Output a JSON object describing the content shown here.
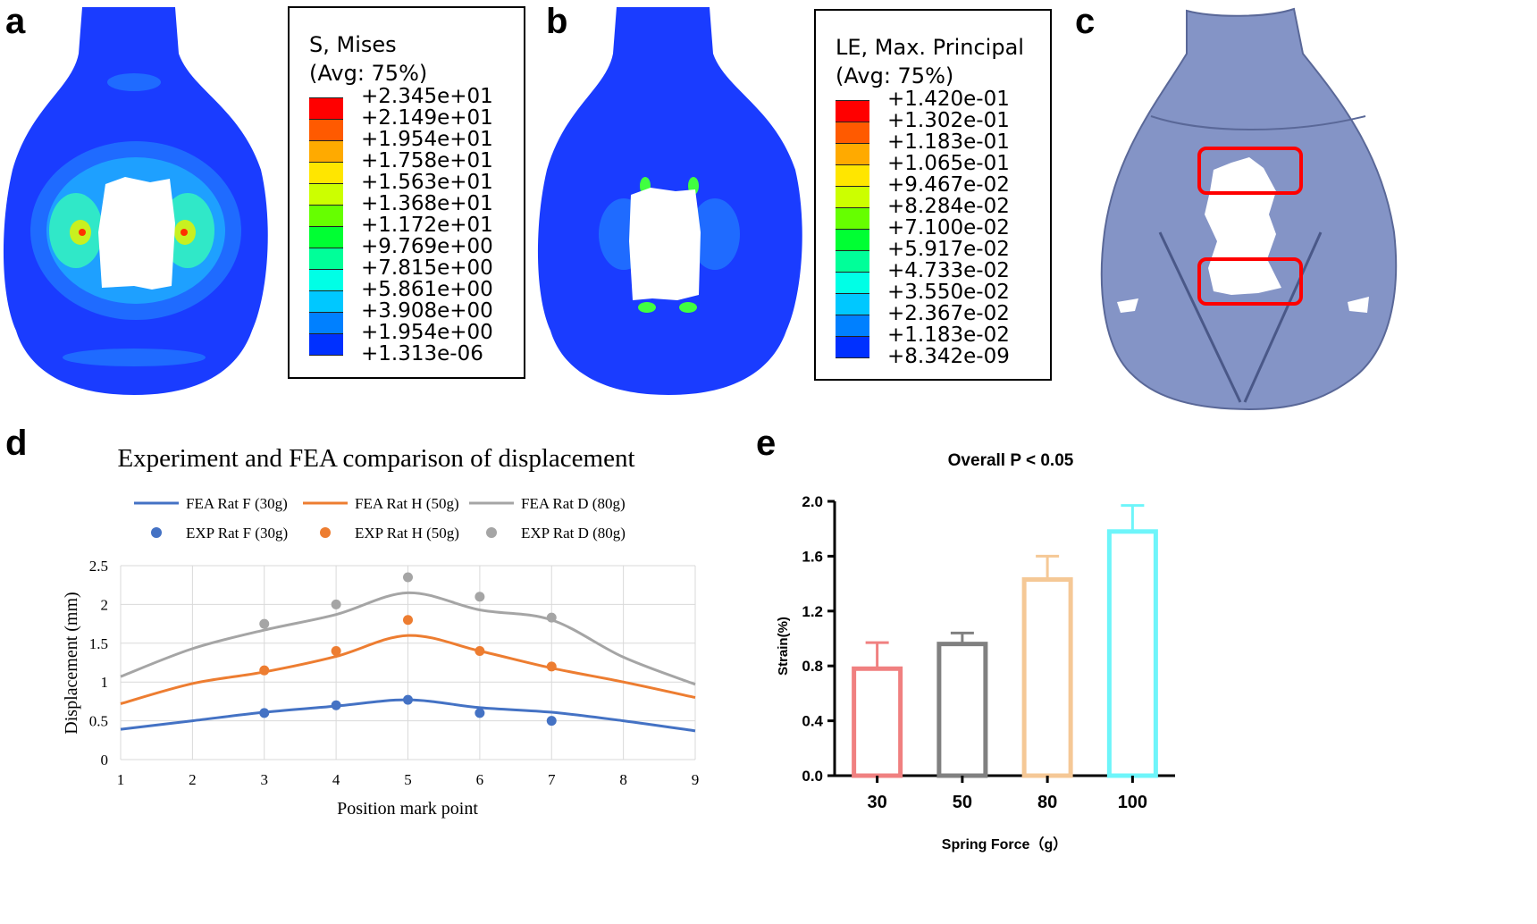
{
  "panels": {
    "a": {
      "letter": "a",
      "legend_title_line1": "S, Mises",
      "legend_title_line2": "(Avg: 75%)",
      "legend_values": [
        "+2.345e+01",
        "+2.149e+01",
        "+1.954e+01",
        "+1.758e+01",
        "+1.563e+01",
        "+1.368e+01",
        "+1.172e+01",
        "+9.769e+00",
        "+7.815e+00",
        "+5.861e+00",
        "+3.908e+00",
        "+1.954e+00",
        "+1.313e-06"
      ]
    },
    "b": {
      "letter": "b",
      "legend_title_line1": "LE, Max. Principal",
      "legend_title_line2": "(Avg: 75%)",
      "legend_values": [
        "+1.420e-01",
        "+1.302e-01",
        "+1.183e-01",
        "+1.065e-01",
        "+9.467e-02",
        "+8.284e-02",
        "+7.100e-02",
        "+5.917e-02",
        "+4.733e-02",
        "+3.550e-02",
        "+2.367e-02",
        "+1.183e-02",
        "+8.342e-09"
      ]
    },
    "c": {
      "letter": "c"
    },
    "d": {
      "letter": "d"
    },
    "e": {
      "letter": "e"
    }
  },
  "contour_colors": [
    "#ff0000",
    "#ff5a00",
    "#ffaa00",
    "#ffe600",
    "#ccff00",
    "#66ff00",
    "#00ff33",
    "#00ff99",
    "#00ffe6",
    "#00c8ff",
    "#0080ff",
    "#0030ff"
  ],
  "colors": {
    "fea_f": "#4472c4",
    "fea_h": "#ed7d31",
    "fea_d": "#a5a5a5",
    "mesh_blue": "#1a3cff",
    "bone": "#8090c0",
    "highlight": "#ff0000"
  },
  "chart_data": [
    {
      "type": "line",
      "title": "Experiment and FEA comparison of displacement",
      "xlabel": "Position mark point",
      "ylabel": "Displacement (mm)",
      "x_ticks": [
        "1",
        "2",
        "3",
        "4",
        "5",
        "6",
        "7",
        "8",
        "9"
      ],
      "y_ticks": [
        "0",
        "0.5",
        "1",
        "1.5",
        "2",
        "2.5"
      ],
      "xlim": [
        1,
        9
      ],
      "ylim": [
        0,
        2.5
      ],
      "series": [
        {
          "name": "FEA Rat F (30g)",
          "kind": "line",
          "color": "#4472c4",
          "x": [
            1,
            2,
            3,
            4,
            5,
            6,
            7,
            8,
            9
          ],
          "y": [
            0.39,
            0.5,
            0.61,
            0.69,
            0.77,
            0.67,
            0.61,
            0.5,
            0.37
          ]
        },
        {
          "name": "FEA Rat H (50g)",
          "kind": "line",
          "color": "#ed7d31",
          "x": [
            1,
            2,
            3,
            4,
            5,
            6,
            7,
            8,
            9
          ],
          "y": [
            0.72,
            0.98,
            1.13,
            1.33,
            1.6,
            1.4,
            1.18,
            1.0,
            0.8
          ]
        },
        {
          "name": "FEA Rat D (80g)",
          "kind": "line",
          "color": "#a5a5a5",
          "x": [
            1,
            2,
            3,
            4,
            5,
            6,
            7,
            8,
            9
          ],
          "y": [
            1.07,
            1.43,
            1.67,
            1.87,
            2.15,
            1.93,
            1.8,
            1.32,
            0.97
          ]
        },
        {
          "name": "EXP Rat F (30g)",
          "kind": "scatter",
          "color": "#4472c4",
          "x": [
            3,
            4,
            5,
            6,
            7
          ],
          "y": [
            0.6,
            0.7,
            0.77,
            0.6,
            0.5
          ]
        },
        {
          "name": "EXP Rat H (50g)",
          "kind": "scatter",
          "color": "#ed7d31",
          "x": [
            3,
            4,
            5,
            6,
            7
          ],
          "y": [
            1.15,
            1.4,
            1.8,
            1.4,
            1.2
          ]
        },
        {
          "name": "EXP Rat D (80g)",
          "kind": "scatter",
          "color": "#a5a5a5",
          "x": [
            3,
            4,
            5,
            6,
            7
          ],
          "y": [
            1.75,
            2.0,
            2.35,
            2.1,
            1.83
          ]
        }
      ]
    },
    {
      "type": "bar",
      "title": "Overall P < 0.05",
      "xlabel": "Spring Force（g）",
      "ylabel": "Strain(%)",
      "categories": [
        "30",
        "50",
        "80",
        "100"
      ],
      "values": [
        0.78,
        0.96,
        1.43,
        1.78
      ],
      "errors": [
        0.19,
        0.08,
        0.17,
        0.19
      ],
      "colors": [
        "#f08080",
        "#808080",
        "#f5c896",
        "#6ef5fa"
      ],
      "y_ticks": [
        "0.0",
        "0.4",
        "0.8",
        "1.2",
        "1.6",
        "2.0"
      ],
      "ylim": [
        0,
        2.0
      ]
    }
  ]
}
